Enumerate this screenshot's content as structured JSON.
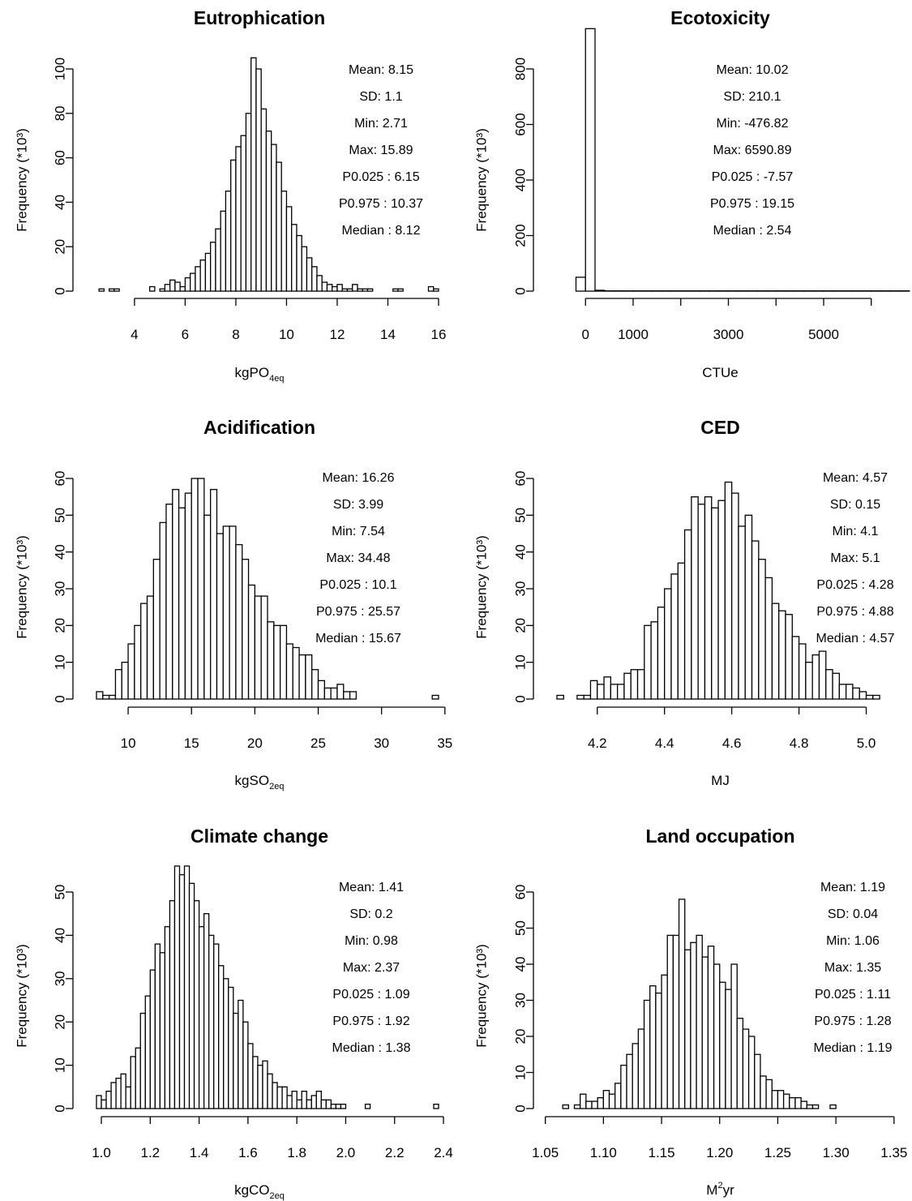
{
  "chart_data": [
    {
      "type": "bar",
      "title": "Eutrophication",
      "xlabel": {
        "base": "kgPO",
        "sub": "4eq",
        "sup": ""
      },
      "ylabel": "Frequency (*10³)",
      "xlim": [
        2.5,
        16.0
      ],
      "ylim": [
        0,
        105
      ],
      "xticks": [
        4,
        6,
        8,
        10,
        12,
        14,
        16
      ],
      "xtick_labels": [
        "4",
        "6",
        "8",
        "10",
        "12",
        "14",
        "16"
      ],
      "yticks": [
        0,
        20,
        40,
        60,
        80,
        100
      ],
      "ytick_labels": [
        "0",
        "20",
        "40",
        "60",
        "80",
        "100"
      ],
      "bin_start": 2.6,
      "bin_width": 0.2,
      "values": [
        1,
        0,
        1,
        1,
        0,
        0,
        0,
        0,
        0,
        0,
        2,
        0,
        1,
        3,
        5,
        4,
        2,
        6,
        8,
        11,
        14,
        17,
        22,
        28,
        36,
        45,
        59,
        65,
        70,
        80,
        105,
        100,
        82,
        72,
        66,
        58,
        45,
        38,
        30,
        25,
        20,
        15,
        11,
        7,
        4,
        3,
        2,
        3,
        1,
        1,
        3,
        1,
        1,
        1,
        0,
        0,
        0,
        0,
        1,
        1,
        0,
        0,
        0,
        0,
        0,
        2,
        1,
        0,
        0,
        0,
        0,
        0,
        0,
        0,
        0,
        0,
        0,
        0,
        0,
        0,
        0,
        0,
        0,
        0,
        0,
        0,
        0,
        0,
        0,
        0,
        0,
        0,
        0,
        0,
        0,
        0,
        0,
        0,
        0,
        0,
        0,
        0,
        0,
        0,
        0,
        0,
        0,
        1
      ],
      "stats": [
        "Mean: 8.15",
        "SD: 1.1",
        "Min: 2.71",
        "Max: 15.89",
        "P0.025 : 6.15",
        "P0.975 : 10.37",
        "Median : 8.12"
      ]
    },
    {
      "type": "bar",
      "title": "Ecotoxicity",
      "xlabel": {
        "base": "CTUe",
        "sub": "",
        "sup": ""
      },
      "ylabel": "Frequency (*10³)",
      "xlim": [
        -600,
        6600
      ],
      "ylim": [
        0,
        950
      ],
      "xticks": [
        0,
        1000,
        2000,
        3000,
        4000,
        5000,
        6000
      ],
      "xtick_labels": [
        "0",
        "1000",
        "",
        "3000",
        "",
        "5000",
        ""
      ],
      "yticks": [
        0,
        200,
        400,
        600,
        800
      ],
      "ytick_labels": [
        "0",
        "200",
        "400",
        "600",
        "800"
      ],
      "bin_start": -200,
      "bin_width": 200,
      "values": [
        50,
        945,
        3,
        1,
        1,
        1,
        1,
        1,
        1,
        1,
        1,
        1,
        1,
        1,
        1,
        1,
        1,
        1,
        1,
        1,
        1,
        1,
        1,
        1,
        1,
        1,
        1,
        1,
        1,
        1,
        1,
        1,
        1,
        1,
        1
      ],
      "stats": [
        "Mean: 10.02",
        "SD: 210.1",
        "Min: -476.82",
        "Max: 6590.89",
        "P0.025 : -7.57",
        "P0.975 : 19.15",
        "Median : 2.54"
      ]
    },
    {
      "type": "bar",
      "title": "Acidification",
      "xlabel": {
        "base": "kgSO",
        "sub": "2eq",
        "sup": ""
      },
      "ylabel": "Frequency (*10³)",
      "xlim": [
        7.5,
        34.5
      ],
      "ylim": [
        0,
        62
      ],
      "xticks": [
        10,
        15,
        20,
        25,
        30,
        35
      ],
      "xtick_labels": [
        "10",
        "15",
        "20",
        "25",
        "30",
        "35"
      ],
      "yticks": [
        0,
        10,
        20,
        30,
        40,
        50,
        60
      ],
      "ytick_labels": [
        "0",
        "10",
        "20",
        "30",
        "40",
        "50",
        "60"
      ],
      "bin_start": 7.5,
      "bin_width": 0.5,
      "values": [
        2,
        1,
        1,
        8,
        10,
        15,
        20,
        26,
        28,
        38,
        48,
        53,
        57,
        52,
        56,
        60,
        60,
        50,
        57,
        45,
        47,
        47,
        42,
        38,
        31,
        28,
        28,
        21,
        20,
        20,
        15,
        14,
        12,
        12,
        8,
        5,
        3,
        3,
        4,
        2,
        2,
        0,
        0,
        0,
        0,
        0,
        0,
        0,
        0,
        0,
        0,
        0,
        0,
        1
      ],
      "stats": [
        "Mean: 16.26",
        "SD: 3.99",
        "Min: 7.54",
        "Max: 34.48",
        "P0.025 : 10.1",
        "P0.975 : 25.57",
        "Median : 15.67"
      ]
    },
    {
      "type": "bar",
      "title": "CED",
      "xlabel": {
        "base": "MJ",
        "sub": "",
        "sup": ""
      },
      "ylabel": "Frequency (*10³)",
      "xlim": [
        4.08,
        5.1
      ],
      "ylim": [
        0,
        62
      ],
      "xticks": [
        4.2,
        4.4,
        4.6,
        4.8,
        5.0
      ],
      "xtick_labels": [
        "4.2",
        "4.4",
        "4.6",
        "4.8",
        "5.0"
      ],
      "yticks": [
        0,
        10,
        20,
        30,
        40,
        50,
        60
      ],
      "ytick_labels": [
        "0",
        "10",
        "20",
        "30",
        "40",
        "50",
        "60"
      ],
      "bin_start": 4.08,
      "bin_width": 0.02,
      "values": [
        1,
        0,
        0,
        1,
        1,
        5,
        4,
        6,
        4,
        4,
        7,
        8,
        8,
        20,
        21,
        25,
        30,
        34,
        37,
        46,
        55,
        53,
        55,
        52,
        54,
        59,
        56,
        47,
        50,
        43,
        38,
        33,
        26,
        24,
        23,
        17,
        15,
        10,
        12,
        13,
        8,
        7,
        4,
        4,
        3,
        2,
        1,
        1
      ],
      "stats": [
        "Mean: 4.57",
        "SD: 0.15",
        "Min: 4.1",
        "Max: 5.1",
        "P0.025 : 4.28",
        "P0.975 : 4.88",
        "Median : 4.57"
      ]
    },
    {
      "type": "bar",
      "title": "Climate change",
      "xlabel": {
        "base": "kgCO",
        "sub": "2eq",
        "sup": ""
      },
      "ylabel": "Frequency (*10³)",
      "xlim": [
        0.98,
        2.38
      ],
      "ylim": [
        0,
        57
      ],
      "xticks": [
        1.0,
        1.2,
        1.4,
        1.6,
        1.8,
        2.0,
        2.2,
        2.4
      ],
      "xtick_labels": [
        "1.0",
        "1.2",
        "1.4",
        "1.6",
        "1.8",
        "2.0",
        "2.2",
        "2.4"
      ],
      "yticks": [
        0,
        10,
        20,
        30,
        40,
        50
      ],
      "ytick_labels": [
        "0",
        "10",
        "20",
        "30",
        "40",
        "50"
      ],
      "bin_start": 0.98,
      "bin_width": 0.02,
      "values": [
        3,
        2,
        4,
        6,
        7,
        8,
        5,
        12,
        14,
        22,
        26,
        32,
        38,
        36,
        42,
        48,
        56,
        54,
        56,
        52,
        48,
        42,
        45,
        40,
        38,
        33,
        30,
        28,
        22,
        25,
        20,
        15,
        12,
        10,
        11,
        8,
        6,
        5,
        5,
        3,
        4,
        2,
        4,
        2,
        3,
        4,
        2,
        2,
        1,
        1,
        1,
        0,
        0,
        0,
        0,
        1,
        0,
        0,
        0,
        0,
        0,
        0,
        0,
        0,
        0,
        0,
        0,
        0,
        0,
        1
      ],
      "stats": [
        "Mean: 1.41",
        "SD: 0.2",
        "Min: 0.98",
        "Max: 2.37",
        "P0.025 : 1.09",
        "P0.975 : 1.92",
        "Median : 1.38"
      ]
    },
    {
      "type": "bar",
      "title": "Land occupation",
      "xlabel": {
        "base": "M",
        "sub": "",
        "sup": "2",
        "tail": "yr"
      },
      "ylabel": "Frequency (*10³)",
      "xlim": [
        1.06,
        1.355
      ],
      "ylim": [
        0,
        62
      ],
      "xticks": [
        1.05,
        1.1,
        1.15,
        1.2,
        1.25,
        1.3,
        1.35
      ],
      "xtick_labels": [
        "1.05",
        "1.10",
        "1.15",
        "1.20",
        "1.25",
        "1.30",
        "1.35"
      ],
      "yticks": [
        0,
        10,
        20,
        30,
        40,
        50,
        60
      ],
      "ytick_labels": [
        "0",
        "10",
        "20",
        "30",
        "40",
        "50",
        "60"
      ],
      "bin_start": 1.065,
      "bin_width": 0.005,
      "values": [
        1,
        0,
        1,
        4,
        2,
        2,
        3,
        5,
        4,
        7,
        12,
        15,
        18,
        22,
        30,
        34,
        32,
        37,
        48,
        48,
        58,
        44,
        46,
        48,
        42,
        45,
        40,
        35,
        33,
        40,
        25,
        22,
        20,
        15,
        9,
        8,
        5,
        5,
        4,
        3,
        3,
        2,
        1,
        1,
        0,
        0,
        1
      ],
      "stats": [
        "Mean: 1.19",
        "SD: 0.04",
        "Min: 1.06",
        "Max: 1.35",
        "P0.025 : 1.11",
        "P0.975 : 1.28",
        "Median : 1.19"
      ]
    }
  ]
}
